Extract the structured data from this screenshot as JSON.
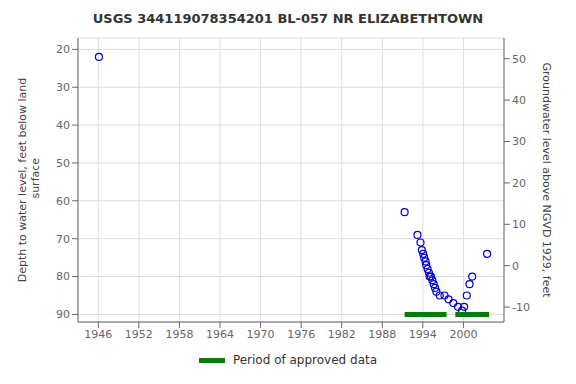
{
  "chart_data": {
    "type": "scatter",
    "title": "USGS 344119078354201 BL-057 NR ELIZABETHTOWN",
    "ylabel": "Depth to water level, feet below land\n surface",
    "y2label": "Groundwater level above NGVD 1929, feet",
    "xlim": [
      1943,
      2006
    ],
    "xticks": [
      1946,
      1952,
      1958,
      1964,
      1970,
      1976,
      1982,
      1988,
      1994,
      2000
    ],
    "ylim": [
      92,
      17
    ],
    "yticks": [
      20,
      30,
      40,
      50,
      60,
      70,
      80,
      90
    ],
    "y2lim": [
      -13.6,
      55
    ],
    "y2ticks": [
      50,
      40,
      30,
      20,
      10,
      0,
      -10
    ],
    "grid": true,
    "series": [
      {
        "type": "scatter",
        "marker": "o",
        "color": "#0000cc",
        "x": [
          1946.1,
          1991.3,
          1993.2,
          1993.65,
          1993.85,
          1994.05,
          1994.2,
          1994.4,
          1994.5,
          1994.7,
          1994.9,
          1995.0,
          1995.2,
          1995.4,
          1995.6,
          1995.8,
          1996.0,
          1996.5,
          1997.2,
          1997.8,
          1998.5,
          1999.2,
          1999.8,
          2000.1,
          2000.5,
          2000.9,
          2001.3,
          2003.5
        ],
        "values": [
          22,
          63,
          69,
          71,
          73,
          74,
          75,
          76,
          77,
          78,
          79,
          80,
          80,
          81,
          82,
          83,
          84,
          85,
          85,
          86,
          87,
          88,
          89,
          88,
          85,
          82,
          80,
          74
        ]
      },
      {
        "name": "Period of approved data",
        "type": "line",
        "color": "#008000",
        "periods": [
          [
            1991.3,
            1997.5
          ],
          [
            1998.8,
            2003.8
          ]
        ],
        "values": [
          90,
          90
        ]
      }
    ]
  }
}
